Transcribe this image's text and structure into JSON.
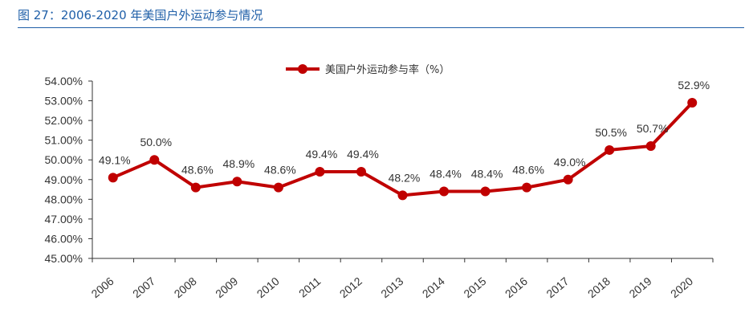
{
  "figure": {
    "title": "图 27：2006-2020 年美国户外运动参与情况"
  },
  "chart_data": {
    "type": "line",
    "categories": [
      "2006",
      "2007",
      "2008",
      "2009",
      "2010",
      "2011",
      "2012",
      "2013",
      "2014",
      "2015",
      "2016",
      "2017",
      "2018",
      "2019",
      "2020"
    ],
    "series": [
      {
        "name": "美国户外运动参与率（%）",
        "values": [
          49.1,
          50.0,
          48.6,
          48.9,
          48.6,
          49.4,
          49.4,
          48.2,
          48.4,
          48.4,
          48.6,
          49.0,
          50.5,
          50.7,
          52.9
        ],
        "labels": [
          "49.1%",
          "50.0%",
          "48.6%",
          "48.9%",
          "48.6%",
          "49.4%",
          "49.4%",
          "48.2%",
          "48.4%",
          "48.4%",
          "48.6%",
          "49.0%",
          "50.5%",
          "50.7%",
          "52.9%"
        ],
        "color": "#c00000"
      }
    ],
    "ylim": [
      45,
      54
    ],
    "yticks": [
      "45.00%",
      "46.00%",
      "47.00%",
      "48.00%",
      "49.00%",
      "50.00%",
      "51.00%",
      "52.00%",
      "53.00%",
      "54.00%"
    ],
    "legend_position": "top-center",
    "grid": false
  }
}
